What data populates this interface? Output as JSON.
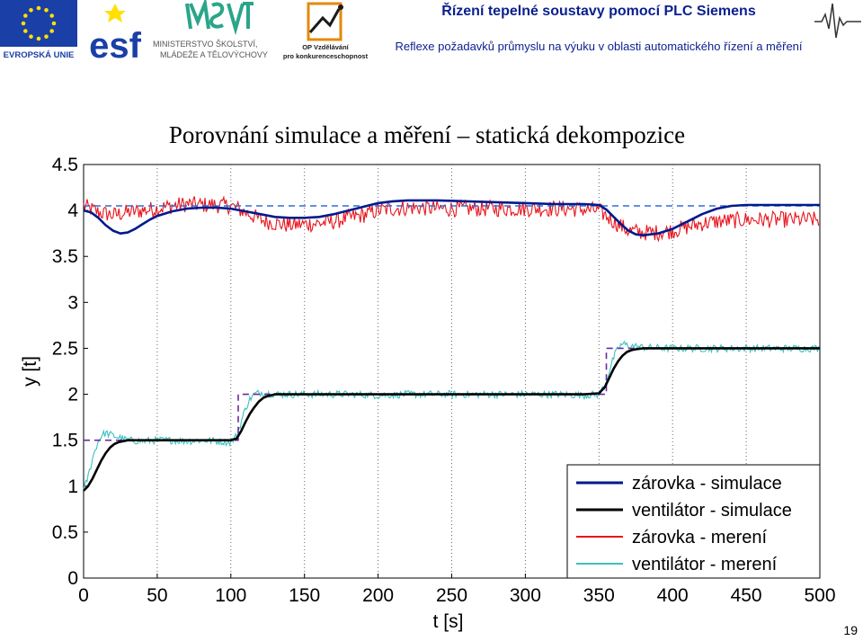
{
  "header": {
    "title": "Řízení tepelné soustavy pomocí PLC Siemens",
    "subtitle": "Reflexe požadavků průmyslu na výuku v oblasti automatického řízení a měření",
    "logos": {
      "eu_label": "EVROPSKÁ UNIE",
      "esf_label": "esf",
      "msmt_line1": "MINISTERSTVO ŠKOLSTVÍ,",
      "msmt_line2": "MLÁDEŽE A TĚLOVÝCHOVY",
      "op_line1": "OP Vzdělávání",
      "op_line2": "pro konkurenceschopnost"
    }
  },
  "slide": {
    "title": "Porovnání simulace a měření – statická dekompozice",
    "page_number": "19"
  },
  "colors": {
    "header_text": "#0a1f8f",
    "zarovka_sim": "#001a8c",
    "ventilator_sim": "#000000",
    "zarovka_mer": "#e8141c",
    "ventilator_mer": "#3cc0c0",
    "reference_top": "#2d6fd6",
    "reference_bottom": "#6a2a9a"
  },
  "chart_data": {
    "type": "line",
    "xlabel": "t [s]",
    "ylabel": "y [t]",
    "xlim": [
      0,
      500
    ],
    "ylim": [
      0,
      4.5
    ],
    "xticks": [
      0,
      50,
      100,
      150,
      200,
      250,
      300,
      350,
      400,
      450,
      500
    ],
    "yticks": [
      0,
      0.5,
      1,
      1.5,
      2,
      2.5,
      3,
      3.5,
      4,
      4.5
    ],
    "ytick_labels": [
      "0",
      "0.5",
      "1",
      "1.5",
      "2",
      "2.5",
      "3",
      "3.5",
      "4",
      "4.5"
    ],
    "grid": "vertical dotted",
    "legend_position": "bottom-right",
    "series": [
      {
        "name": "zárovka - simulace",
        "x": [
          0,
          5,
          10,
          15,
          20,
          25,
          30,
          35,
          40,
          45,
          50,
          60,
          70,
          80,
          90,
          100,
          110,
          120,
          130,
          140,
          150,
          160,
          170,
          180,
          190,
          200,
          210,
          220,
          240,
          260,
          280,
          300,
          320,
          340,
          350,
          355,
          360,
          365,
          370,
          375,
          380,
          390,
          400,
          410,
          420,
          430,
          440,
          450,
          460,
          480,
          500
        ],
        "y": [
          4.0,
          3.98,
          3.92,
          3.84,
          3.78,
          3.75,
          3.76,
          3.8,
          3.85,
          3.9,
          3.94,
          3.99,
          4.02,
          4.03,
          4.03,
          4.02,
          3.99,
          3.96,
          3.93,
          3.92,
          3.92,
          3.93,
          3.96,
          4.0,
          4.04,
          4.08,
          4.1,
          4.11,
          4.11,
          4.1,
          4.09,
          4.08,
          4.07,
          4.07,
          4.06,
          4.01,
          3.93,
          3.85,
          3.78,
          3.74,
          3.73,
          3.75,
          3.8,
          3.88,
          3.96,
          4.02,
          4.05,
          4.06,
          4.06,
          4.06,
          4.06
        ]
      },
      {
        "name": "ventilátor - simulace",
        "x": [
          0,
          3,
          6,
          9,
          12,
          15,
          18,
          21,
          24,
          27,
          30,
          40,
          50,
          60,
          70,
          80,
          90,
          100,
          104,
          107,
          110,
          113,
          116,
          119,
          122,
          125,
          130,
          140,
          160,
          180,
          200,
          220,
          240,
          260,
          280,
          300,
          320,
          340,
          350,
          354,
          357,
          360,
          363,
          366,
          369,
          372,
          375,
          380,
          400,
          420,
          440,
          460,
          480,
          500
        ],
        "y": [
          0.95,
          1.0,
          1.08,
          1.18,
          1.28,
          1.36,
          1.42,
          1.46,
          1.48,
          1.49,
          1.5,
          1.5,
          1.5,
          1.5,
          1.5,
          1.5,
          1.5,
          1.5,
          1.52,
          1.6,
          1.7,
          1.79,
          1.86,
          1.92,
          1.96,
          1.98,
          2.0,
          2.0,
          2.0,
          2.0,
          2.0,
          2.0,
          2.0,
          2.0,
          2.0,
          2.0,
          2.0,
          2.0,
          2.01,
          2.08,
          2.18,
          2.28,
          2.36,
          2.42,
          2.46,
          2.48,
          2.49,
          2.5,
          2.5,
          2.5,
          2.5,
          2.5,
          2.5,
          2.5
        ]
      },
      {
        "name": "zárovka - merení",
        "x": [
          0,
          10,
          20,
          30,
          40,
          50,
          60,
          70,
          80,
          90,
          100,
          110,
          120,
          130,
          140,
          150,
          160,
          170,
          180,
          190,
          200,
          210,
          220,
          230,
          240,
          250,
          260,
          270,
          280,
          290,
          300,
          310,
          320,
          330,
          340,
          350,
          360,
          370,
          380,
          390,
          400,
          410,
          420,
          430,
          440,
          450,
          460,
          470,
          480,
          490,
          500
        ],
        "y": [
          4.05,
          3.98,
          3.95,
          3.98,
          4.0,
          4.02,
          4.05,
          4.07,
          4.06,
          4.06,
          4.05,
          3.98,
          3.9,
          3.86,
          3.84,
          3.85,
          3.86,
          3.88,
          3.92,
          3.95,
          4.0,
          4.02,
          4.03,
          4.03,
          4.02,
          4.02,
          4.02,
          4.02,
          4.02,
          4.02,
          4.02,
          4.02,
          4.02,
          4.02,
          4.01,
          4.0,
          3.88,
          3.78,
          3.76,
          3.76,
          3.78,
          3.82,
          3.86,
          3.88,
          3.89,
          3.9,
          3.9,
          3.9,
          3.9,
          3.9,
          3.9
        ],
        "noise_amplitude": 0.09
      },
      {
        "name": "ventilátor - merení",
        "x": [
          0,
          3,
          6,
          9,
          12,
          15,
          20,
          30,
          40,
          50,
          60,
          70,
          80,
          90,
          100,
          104,
          107,
          110,
          113,
          116,
          120,
          130,
          140,
          160,
          180,
          200,
          220,
          240,
          260,
          280,
          300,
          320,
          340,
          350,
          354,
          357,
          360,
          363,
          366,
          370,
          380,
          400,
          420,
          440,
          460,
          480,
          500
        ],
        "y": [
          0.95,
          1.1,
          1.3,
          1.45,
          1.55,
          1.58,
          1.55,
          1.5,
          1.49,
          1.5,
          1.5,
          1.49,
          1.5,
          1.49,
          1.48,
          1.55,
          1.7,
          1.85,
          1.95,
          2.0,
          2.02,
          2.0,
          2.0,
          2.0,
          2.0,
          1.99,
          2.0,
          2.0,
          2.0,
          2.0,
          2.0,
          2.0,
          1.99,
          2.0,
          2.1,
          2.25,
          2.4,
          2.5,
          2.55,
          2.53,
          2.51,
          2.5,
          2.5,
          2.5,
          2.5,
          2.5,
          2.5
        ],
        "noise_amplitude": 0.04
      }
    ],
    "reference_lines": [
      {
        "x": [
          0,
          500
        ],
        "y": [
          4.05,
          4.05
        ],
        "style": "dashed",
        "color": "#2d6fd6"
      },
      {
        "x": [
          0,
          105,
          105,
          355,
          355,
          500
        ],
        "y": [
          1.5,
          1.5,
          2.0,
          2.0,
          2.5,
          2.5
        ],
        "style": "dashed",
        "color": "#6a2a9a"
      }
    ]
  }
}
